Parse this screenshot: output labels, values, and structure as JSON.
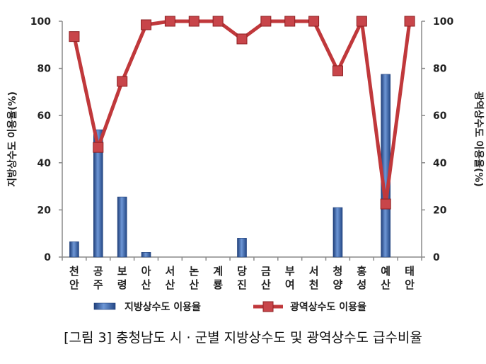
{
  "caption": "[그림 3] 충청남도 시 · 군별 지방상수도 및 광역상수도 급수비율",
  "chart_data": {
    "type": "bar+line",
    "categories": [
      "천안",
      "공주",
      "보령",
      "아산",
      "서산",
      "논산",
      "계룡",
      "당진",
      "금산",
      "부여",
      "서천",
      "청양",
      "홍성",
      "예산",
      "태안"
    ],
    "series": [
      {
        "name": "지방상수도 이용율",
        "type": "bar",
        "axis": "left",
        "values": [
          6.5,
          54,
          25.5,
          2,
          0,
          0,
          0,
          8,
          0,
          0,
          0,
          21,
          0,
          77.5,
          0
        ],
        "color": "#3A64B0"
      },
      {
        "name": "광역상수도 이용율",
        "type": "line",
        "axis": "right",
        "values": [
          93.5,
          46.5,
          74.5,
          98.5,
          100,
          100,
          100,
          92.5,
          100,
          100,
          100,
          79,
          100,
          22.5,
          100
        ],
        "color": "#C0383B"
      }
    ],
    "ylabel": "지방상수도 이용율(%)",
    "y2label": "광역상수도 이용율(%)",
    "ylim": [
      0,
      100
    ],
    "y2lim": [
      0,
      100
    ],
    "yticks": [
      "0",
      "20",
      "40",
      "60",
      "80",
      "100"
    ],
    "grid": false,
    "legend_position": "bottom"
  }
}
